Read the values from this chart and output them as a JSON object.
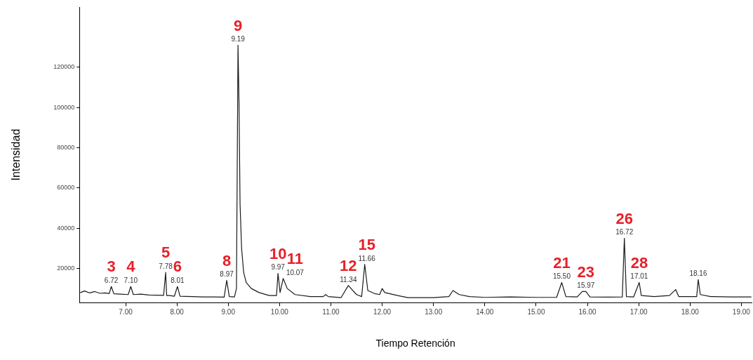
{
  "chart_data": {
    "type": "line",
    "xlabel": "Tiempo Retención",
    "ylabel": "Intensidad",
    "xlim": [
      6.1,
      19.2
    ],
    "xticks": [
      {
        "value": 7,
        "label": "7.00"
      },
      {
        "value": 8,
        "label": "8.00"
      },
      {
        "value": 9,
        "label": "9.00"
      },
      {
        "value": 10,
        "label": "10.00"
      },
      {
        "value": 11,
        "label": "11.00"
      },
      {
        "value": 12,
        "label": "12.00"
      },
      {
        "value": 13,
        "label": "13.00"
      },
      {
        "value": 14,
        "label": "14.00"
      },
      {
        "value": 15,
        "label": "15.00"
      },
      {
        "value": 16,
        "label": "16.00"
      },
      {
        "value": 17,
        "label": "17.00"
      },
      {
        "value": 18,
        "label": "18.00"
      },
      {
        "value": 19,
        "label": "19.00"
      }
    ],
    "ylim": [
      3000,
      150000
    ],
    "yticks": [
      20000,
      40000,
      60000,
      80000,
      100000,
      120000
    ],
    "grid": false,
    "legend": false,
    "marker": "none",
    "line_style": "solid",
    "series": [
      {
        "color": "#1a1a1a",
        "x": [
          6.12,
          6.2,
          6.3,
          6.4,
          6.5,
          6.6,
          6.68,
          6.72,
          6.77,
          6.9,
          7.05,
          7.1,
          7.15,
          7.3,
          7.45,
          7.6,
          7.74,
          7.78,
          7.8,
          7.85,
          7.95,
          8.01,
          8.06,
          8.3,
          8.5,
          8.7,
          8.92,
          8.97,
          9.02,
          9.12,
          9.16,
          9.19,
          9.21,
          9.23,
          9.26,
          9.3,
          9.35,
          9.45,
          9.6,
          9.8,
          9.94,
          9.97,
          10.01,
          10.07,
          10.15,
          10.3,
          10.6,
          10.85,
          10.9,
          10.95,
          11.2,
          11.34,
          11.5,
          11.6,
          11.66,
          11.72,
          11.85,
          11.95,
          12.0,
          12.05,
          12.3,
          12.5,
          13.0,
          13.3,
          13.38,
          13.5,
          13.7,
          14.0,
          14.5,
          15.0,
          15.4,
          15.5,
          15.58,
          15.8,
          15.9,
          15.97,
          16.05,
          16.4,
          16.68,
          16.72,
          16.76,
          16.9,
          17.01,
          17.05,
          17.3,
          17.6,
          17.72,
          17.78,
          18.0,
          18.13,
          18.16,
          18.2,
          18.4,
          18.8,
          19.19
        ],
        "values": [
          8000,
          8800,
          7800,
          8500,
          7600,
          7800,
          7500,
          11000,
          7400,
          7200,
          7000,
          11000,
          7000,
          7200,
          6800,
          6700,
          6600,
          18000,
          6500,
          6500,
          6200,
          11000,
          6200,
          6000,
          5800,
          5800,
          5700,
          14000,
          6000,
          5800,
          10000,
          131000,
          102000,
          52000,
          30000,
          18000,
          13000,
          10000,
          8000,
          6500,
          6500,
          17500,
          8000,
          15000,
          10000,
          7000,
          6000,
          6000,
          7000,
          6000,
          5500,
          11500,
          7000,
          6000,
          22000,
          9000,
          7500,
          7000,
          10000,
          8000,
          6500,
          5500,
          5500,
          6000,
          9000,
          7000,
          6000,
          5600,
          5800,
          5600,
          5600,
          13000,
          6000,
          5800,
          8500,
          8500,
          5800,
          5700,
          5800,
          35000,
          6000,
          5800,
          13000,
          6500,
          6000,
          6500,
          9500,
          6000,
          6000,
          6000,
          14500,
          7000,
          6000,
          5800,
          5800
        ]
      }
    ],
    "annotations": [
      {
        "text": "6.72",
        "x": 6.72,
        "y": 11000
      },
      {
        "text": "3",
        "x": 6.72,
        "y": 11000
      },
      {
        "text": "7.10",
        "x": 7.1,
        "y": 11000
      },
      {
        "text": "4",
        "x": 7.1,
        "y": 11000
      },
      {
        "text": "7.78",
        "x": 7.78,
        "y": 18000
      },
      {
        "text": "5",
        "x": 7.78,
        "y": 18000
      },
      {
        "text": "8.01",
        "x": 8.01,
        "y": 11000
      },
      {
        "text": "6",
        "x": 8.01,
        "y": 11000
      },
      {
        "text": "8.97",
        "x": 8.97,
        "y": 14000
      },
      {
        "text": "8",
        "x": 8.97,
        "y": 14000
      },
      {
        "text": "9.19",
        "x": 9.19,
        "y": 131000
      },
      {
        "text": "9",
        "x": 9.19,
        "y": 131000
      },
      {
        "text": "9.97",
        "x": 9.97,
        "y": 17500
      },
      {
        "text": "10",
        "x": 9.97,
        "y": 17500
      },
      {
        "text": "10.07",
        "x": 10.07,
        "y": 15000
      },
      {
        "text": "11",
        "x": 10.07,
        "y": 15000
      },
      {
        "text": "11.34",
        "x": 11.34,
        "y": 11500
      },
      {
        "text": "12",
        "x": 11.34,
        "y": 11500
      },
      {
        "text": "11.66",
        "x": 11.66,
        "y": 22000
      },
      {
        "text": "15",
        "x": 11.66,
        "y": 22000
      },
      {
        "text": "15.50",
        "x": 15.5,
        "y": 13000
      },
      {
        "text": "21",
        "x": 15.5,
        "y": 13000
      },
      {
        "text": "15.97",
        "x": 15.97,
        "y": 8500
      },
      {
        "text": "23",
        "x": 15.97,
        "y": 8500
      },
      {
        "text": "16.72",
        "x": 16.72,
        "y": 35000
      },
      {
        "text": "26",
        "x": 16.72,
        "y": 35000
      },
      {
        "text": "17.01",
        "x": 17.01,
        "y": 13000
      },
      {
        "text": "28",
        "x": 17.01,
        "y": 13000
      },
      {
        "text": "18.16",
        "x": 18.16,
        "y": 14500
      }
    ]
  }
}
